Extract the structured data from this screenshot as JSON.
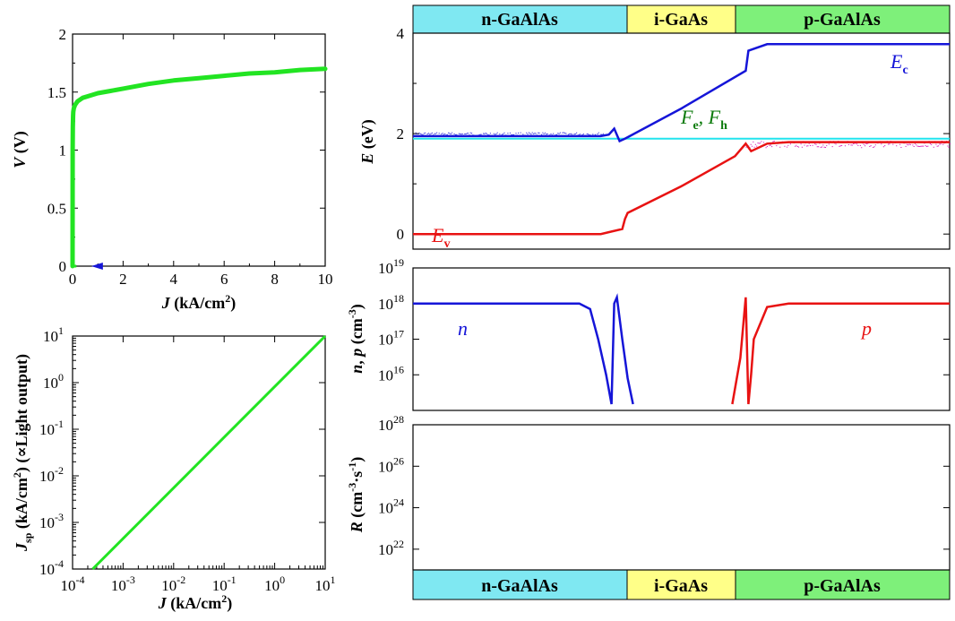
{
  "colors": {
    "green_curve": "#22e422",
    "conduction": "#1515d8",
    "valence": "#e81212",
    "fermi": "#22e4ee",
    "fermi_label": "#0a7a0a",
    "n_region": "#7fe8f2",
    "i_region": "#ffff88",
    "p_region": "#7ef07a",
    "hole_noise": "#d000b0"
  },
  "regions": {
    "n": "n-GaAlAs",
    "i": "i-GaAs",
    "p": "p-GaAlAs"
  },
  "chart_data": [
    {
      "id": "iv",
      "type": "line",
      "xlabel": "J (kA/cm²)",
      "ylabel": "V (V)",
      "xlim": [
        0,
        10
      ],
      "ylim": [
        0,
        2
      ],
      "xticks": [
        "0",
        "2",
        "4",
        "6",
        "8",
        "10"
      ],
      "yticks": [
        "0",
        "0.5",
        "1",
        "1.5",
        "2"
      ],
      "grid": false,
      "series": [
        {
          "x": [
            0,
            0.005,
            0.01,
            0.02,
            0.03,
            0.05,
            0.08,
            0.1,
            0.2,
            0.4,
            0.7,
            1.0,
            1.5,
            2,
            3,
            4,
            5,
            6,
            7,
            8,
            9,
            10
          ],
          "y": [
            0,
            1.0,
            1.2,
            1.3,
            1.33,
            1.36,
            1.38,
            1.39,
            1.42,
            1.45,
            1.47,
            1.49,
            1.51,
            1.53,
            1.57,
            1.6,
            1.62,
            1.64,
            1.66,
            1.67,
            1.69,
            1.7
          ]
        }
      ],
      "marker": {
        "x": 1.2,
        "y": 0,
        "shape": "arrow-left"
      }
    },
    {
      "id": "light",
      "type": "line",
      "xlabel": "J (kA/cm²)",
      "ylabel": "Jsp (kA/cm²) (∝Light output)",
      "xscale": "log",
      "yscale": "log",
      "xlim": [
        0.0001,
        10
      ],
      "ylim": [
        0.0001,
        10
      ],
      "xtick_exponents": [
        "-4",
        "-3",
        "-2",
        "-1",
        "0",
        "1"
      ],
      "ytick_exponents": [
        "-4",
        "-3",
        "-2",
        "-1",
        "0",
        "1"
      ],
      "tick_base": "10",
      "grid": false,
      "series": [
        {
          "x": [
            0.00025,
            10
          ],
          "y": [
            0.0001,
            10
          ]
        }
      ]
    },
    {
      "id": "band",
      "type": "line",
      "ylabel": "E (eV)",
      "ylim": [
        -0.3,
        4
      ],
      "yticks": [
        "0",
        "2",
        "4"
      ],
      "x_positions_normalized_to_device": true,
      "xlim": [
        0,
        1
      ],
      "labels": {
        "ec": "E",
        "ec_sub": "c",
        "ev": "E",
        "ev_sub": "v",
        "fermi": "F",
        "fermi_sub_e": "e",
        "fermi_mid": ", F",
        "fermi_sub_h": "h"
      },
      "series": [
        {
          "id": "Ec",
          "x": [
            0,
            0.35,
            0.365,
            0.375,
            0.385,
            0.395,
            0.5,
            0.62,
            0.625,
            0.66,
            0.7,
            1
          ],
          "y": [
            1.95,
            1.95,
            1.98,
            2.1,
            1.85,
            1.9,
            2.5,
            3.25,
            3.65,
            3.78,
            3.78,
            3.78
          ]
        },
        {
          "id": "Fermi",
          "x": [
            0,
            1
          ],
          "y": [
            1.9,
            1.9
          ]
        },
        {
          "id": "Ev",
          "x": [
            0,
            0.35,
            0.37,
            0.39,
            0.395,
            0.4,
            0.5,
            0.6,
            0.62,
            0.63,
            0.66,
            0.7,
            1
          ],
          "y": [
            0,
            0,
            0.05,
            0.1,
            0.3,
            0.42,
            0.95,
            1.55,
            1.8,
            1.65,
            1.8,
            1.83,
            1.83
          ]
        }
      ],
      "electron_quasi_fermi_noise": {
        "x": [
          0,
          0.36
        ],
        "y": [
          1.95,
          2.02
        ]
      },
      "hole_quasi_fermi_noise": {
        "x": [
          0.62,
          1
        ],
        "y": [
          1.72,
          1.85
        ]
      }
    },
    {
      "id": "carriers",
      "type": "line",
      "ylabel": "n, p (cm⁻³)",
      "yscale": "log",
      "ylim": [
        1000000000000000.0,
        1e+19
      ],
      "ytick_exponents": [
        "16",
        "17",
        "18",
        "19"
      ],
      "tick_base": "10",
      "labels": {
        "n": "n",
        "p": "p"
      },
      "series": [
        {
          "id": "n",
          "x": [
            0,
            0.31,
            0.33,
            0.345,
            0.36,
            0.37,
            0.375,
            0.38,
            0.39,
            0.4,
            0.41
          ],
          "y": [
            1e+18,
            1e+18,
            7e+17,
            1e+17,
            1e+16,
            1500000000000000.0,
            1e+18,
            1.5e+18,
            1e+17,
            8000000000000000.0,
            1500000000000000.0
          ]
        },
        {
          "id": "p",
          "x": [
            0.595,
            0.61,
            0.62,
            0.625,
            0.63,
            0.635,
            0.66,
            0.7,
            1
          ],
          "y": [
            1500000000000000.0,
            3e+16,
            1.5e+18,
            1500000000000000.0,
            1e+16,
            1e+17,
            8e+17,
            1e+18,
            1e+18
          ]
        }
      ]
    },
    {
      "id": "recomb",
      "type": "line",
      "ylabel": "R (cm⁻³·s⁻¹)",
      "yscale": "log",
      "ylim": [
        1e+21,
        1e+28
      ],
      "ytick_exponents": [
        "22",
        "24",
        "26",
        "28"
      ],
      "tick_base": "10",
      "series": []
    }
  ]
}
